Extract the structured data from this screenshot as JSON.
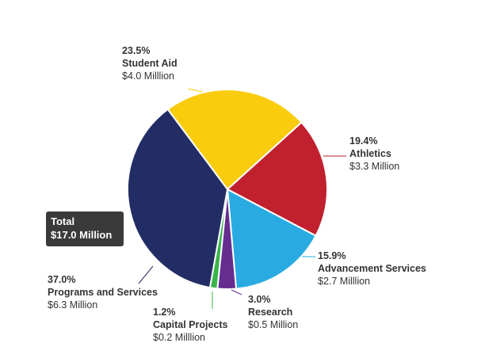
{
  "chart_data": {
    "type": "pie",
    "total": {
      "label": "Total",
      "value": "$17.0 Million"
    },
    "slices": [
      {
        "percent": "23.5%",
        "name": "Student Aid",
        "amount": "$4.0 Milllion",
        "value": 23.5,
        "color": "#f9cc0e"
      },
      {
        "percent": "19.4%",
        "name": "Athletics",
        "amount": "$3.3 Million",
        "value": 19.4,
        "color": "#c1202f"
      },
      {
        "percent": "15.9%",
        "name": "Advancement Services",
        "amount": "$2.7 Milllion",
        "value": 15.9,
        "color": "#29abe2"
      },
      {
        "percent": "3.0%",
        "name": "Research",
        "amount": "$0.5 Million",
        "value": 3.0,
        "color": "#662d91"
      },
      {
        "percent": "1.2%",
        "name": "Capital Projects",
        "amount": "$0.2 Milllion",
        "value": 1.2,
        "color": "#39b54a"
      },
      {
        "percent": "37.0%",
        "name": "Programs and Services",
        "amount": "$6.3 Million",
        "value": 37.0,
        "color": "#232d65"
      }
    ]
  }
}
